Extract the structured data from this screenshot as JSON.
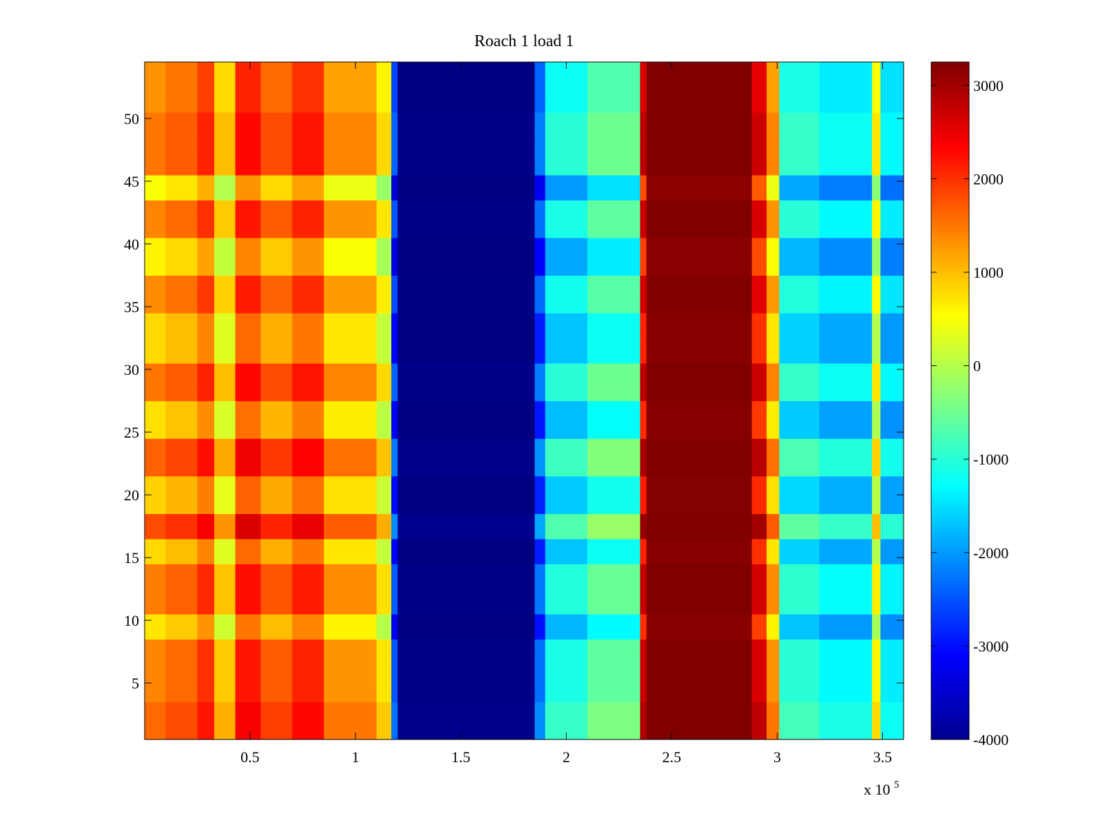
{
  "chart_data": {
    "type": "heatmap",
    "title": "Roach 1 load 1",
    "xlabel": "",
    "ylabel": "",
    "x_exponent_label": {
      "base": "x 10",
      "exponent": "5"
    },
    "xlim": [
      0,
      3.6
    ],
    "ylim": [
      0.5,
      54.5
    ],
    "x_scale": 100000,
    "x_ticks": [
      0.5,
      1,
      1.5,
      2,
      2.5,
      3,
      3.5
    ],
    "x_tick_labels": [
      "0.5",
      "1",
      "1.5",
      "2",
      "2.5",
      "3",
      "3.5"
    ],
    "y_ticks": [
      5,
      10,
      15,
      20,
      25,
      30,
      35,
      40,
      45,
      50
    ],
    "y_tick_labels": [
      "5",
      "10",
      "15",
      "20",
      "25",
      "30",
      "35",
      "40",
      "45",
      "50"
    ],
    "colormap": "jet",
    "clim": [
      -4000,
      3250
    ],
    "colorbar_ticks": [
      3000,
      2000,
      1000,
      0,
      -1000,
      -2000,
      -3000,
      -4000
    ],
    "colorbar_tick_labels": [
      "3000",
      "2000",
      "1000",
      "0",
      "-1000",
      "-2000",
      "-3000",
      "-4000"
    ],
    "rows": 54,
    "column_profile": [
      {
        "x_start": 0.0,
        "x_end": 0.1,
        "value": 1100
      },
      {
        "x_start": 0.1,
        "x_end": 0.25,
        "value": 1300
      },
      {
        "x_start": 0.25,
        "x_end": 0.33,
        "value": 1700
      },
      {
        "x_start": 0.33,
        "x_end": 0.43,
        "value": 600
      },
      {
        "x_start": 0.43,
        "x_end": 0.55,
        "value": 1900
      },
      {
        "x_start": 0.55,
        "x_end": 0.7,
        "value": 1400
      },
      {
        "x_start": 0.7,
        "x_end": 0.85,
        "value": 1800
      },
      {
        "x_start": 0.85,
        "x_end": 1.1,
        "value": 1000
      },
      {
        "x_start": 1.1,
        "x_end": 1.17,
        "value": 400
      },
      {
        "x_start": 1.17,
        "x_end": 1.2,
        "value": -2800
      },
      {
        "x_start": 1.2,
        "x_end": 1.85,
        "value": -4000
      },
      {
        "x_start": 1.85,
        "x_end": 1.9,
        "value": -2600
      },
      {
        "x_start": 1.9,
        "x_end": 2.1,
        "value": -1400
      },
      {
        "x_start": 2.1,
        "x_end": 2.35,
        "value": -900
      },
      {
        "x_start": 2.35,
        "x_end": 2.38,
        "value": 2400
      },
      {
        "x_start": 2.38,
        "x_end": 2.88,
        "value": 3250
      },
      {
        "x_start": 2.88,
        "x_end": 2.95,
        "value": 2300
      },
      {
        "x_start": 2.95,
        "x_end": 3.01,
        "value": 1000
      },
      {
        "x_start": 3.01,
        "x_end": 3.2,
        "value": -1300
      },
      {
        "x_start": 3.2,
        "x_end": 3.45,
        "value": -1600
      },
      {
        "x_start": 3.45,
        "x_end": 3.49,
        "value": 300
      },
      {
        "x_start": 3.49,
        "x_end": 3.6,
        "value": -1700
      }
    ],
    "row_modulation": [
      {
        "rows": [
          1,
          3
        ],
        "delta": 500
      },
      {
        "rows": [
          4,
          8
        ],
        "delta": 300
      },
      {
        "rows": [
          9,
          10
        ],
        "delta": -400
      },
      {
        "rows": [
          11,
          14
        ],
        "delta": 350
      },
      {
        "rows": [
          15,
          16
        ],
        "delta": -300
      },
      {
        "rows": [
          17,
          18
        ],
        "delta": 700
      },
      {
        "rows": [
          19,
          21
        ],
        "delta": -250
      },
      {
        "rows": [
          22,
          24
        ],
        "delta": 550
      },
      {
        "rows": [
          25,
          27
        ],
        "delta": -350
      },
      {
        "rows": [
          28,
          30
        ],
        "delta": 400
      },
      {
        "rows": [
          31,
          34
        ],
        "delta": -300
      },
      {
        "rows": [
          35,
          37
        ],
        "delta": 250
      },
      {
        "rows": [
          38,
          40
        ],
        "delta": -500
      },
      {
        "rows": [
          41,
          43
        ],
        "delta": 300
      },
      {
        "rows": [
          44,
          45
        ],
        "delta": -600
      },
      {
        "rows": [
          46,
          50
        ],
        "delta": 400
      },
      {
        "rows": [
          51,
          54
        ],
        "delta": 200
      }
    ]
  }
}
